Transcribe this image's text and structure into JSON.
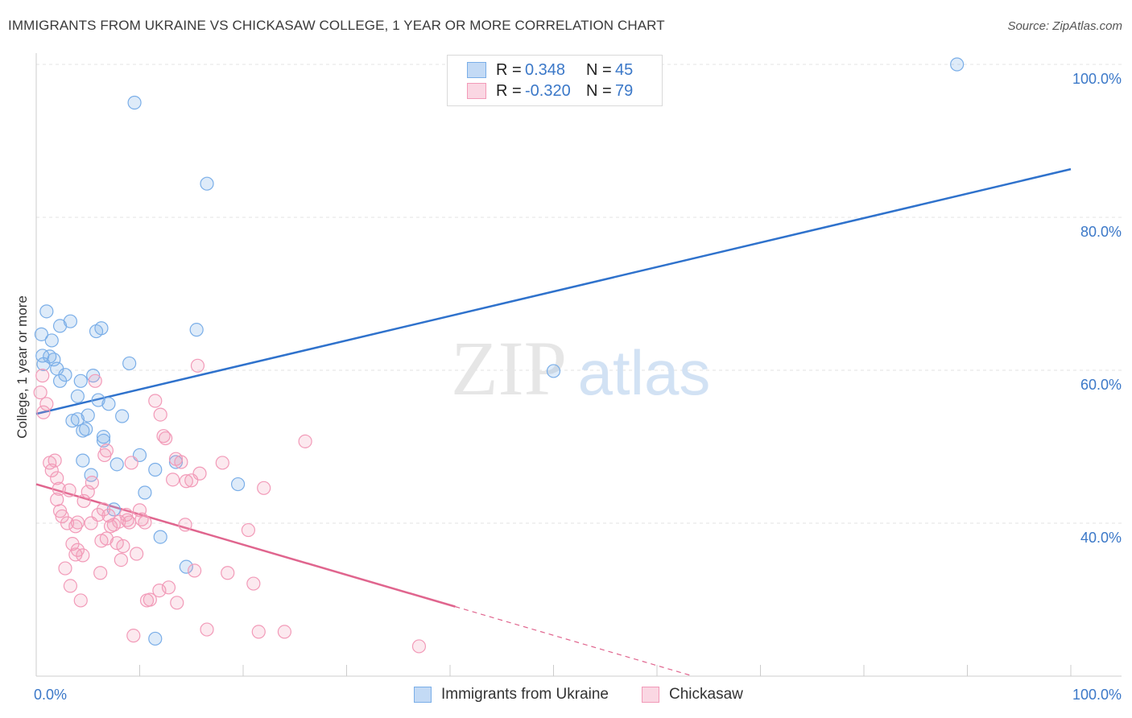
{
  "title": "IMMIGRANTS FROM UKRAINE VS CHICKASAW COLLEGE, 1 YEAR OR MORE CORRELATION CHART",
  "source": "Source: ZipAtlas.com",
  "watermark": {
    "zip": "ZIP",
    "atlas": "atlas"
  },
  "legend": {
    "rows": [
      {
        "r_label": "R =",
        "r_value": "0.348",
        "n_label": "N =",
        "n_value": "45",
        "color": "#7aaee8"
      },
      {
        "r_label": "R =",
        "r_value": "-0.320",
        "n_label": "N =",
        "n_value": "79",
        "color": "#f29ab8"
      }
    ]
  },
  "bottom_legend": {
    "series1": "Immigrants from Ukraine",
    "series2": "Chickasaw"
  },
  "chart_data": {
    "type": "scatter",
    "title": "IMMIGRANTS FROM UKRAINE VS CHICKASAW COLLEGE, 1 YEAR OR MORE CORRELATION CHART",
    "xlabel": "",
    "ylabel": "College, 1 year or more",
    "xlim": [
      0,
      100
    ],
    "ylim": [
      20,
      100
    ],
    "x_tick_labels": [
      "0.0%",
      "100.0%"
    ],
    "y_ticks": [
      40,
      60,
      80,
      100
    ],
    "y_tick_labels": [
      "40.0%",
      "60.0%",
      "80.0%",
      "100.0%"
    ],
    "grid": true,
    "series": [
      {
        "name": "Immigrants from Ukraine",
        "color": "#7aaee8",
        "line_color": "#2f72cc",
        "trend": {
          "x0": 0,
          "y0": 54.3,
          "x1": 100,
          "y1": 86.3,
          "dashed_from": null
        },
        "points": [
          [
            0.5,
            64.7
          ],
          [
            0.6,
            61.9
          ],
          [
            0.7,
            60.8
          ],
          [
            1.0,
            67.7
          ],
          [
            1.3,
            61.8
          ],
          [
            1.5,
            63.9
          ],
          [
            1.7,
            61.4
          ],
          [
            2.0,
            60.2
          ],
          [
            2.3,
            58.6
          ],
          [
            2.3,
            65.8
          ],
          [
            2.8,
            59.4
          ],
          [
            3.3,
            66.4
          ],
          [
            3.5,
            53.4
          ],
          [
            4.0,
            53.6
          ],
          [
            4.0,
            56.6
          ],
          [
            4.3,
            58.6
          ],
          [
            4.5,
            52.1
          ],
          [
            4.8,
            52.3
          ],
          [
            4.5,
            48.2
          ],
          [
            5.0,
            54.1
          ],
          [
            5.3,
            46.3
          ],
          [
            5.5,
            59.3
          ],
          [
            5.8,
            65.1
          ],
          [
            6.0,
            56.1
          ],
          [
            6.3,
            65.5
          ],
          [
            6.5,
            50.8
          ],
          [
            6.5,
            51.3
          ],
          [
            7.0,
            55.6
          ],
          [
            7.5,
            41.8
          ],
          [
            7.8,
            47.7
          ],
          [
            8.3,
            54.0
          ],
          [
            9.0,
            60.9
          ],
          [
            9.5,
            95.0
          ],
          [
            10.0,
            48.9
          ],
          [
            10.5,
            44.0
          ],
          [
            11.5,
            47.0
          ],
          [
            12.0,
            38.2
          ],
          [
            13.5,
            48.0
          ],
          [
            14.5,
            34.3
          ],
          [
            15.5,
            65.3
          ],
          [
            16.5,
            84.4
          ],
          [
            19.5,
            45.1
          ],
          [
            50.0,
            59.9
          ],
          [
            89.0,
            100.0
          ],
          [
            11.5,
            24.9
          ]
        ]
      },
      {
        "name": "Chickasaw",
        "color": "#f29ab8",
        "line_color": "#e0658e",
        "trend": {
          "x0": 0,
          "y0": 45.1,
          "x1": 63.5,
          "y1": 20.0,
          "dashed_from": 40.5
        },
        "points": [
          [
            0.4,
            57.1
          ],
          [
            0.6,
            59.3
          ],
          [
            0.7,
            54.5
          ],
          [
            1.0,
            55.6
          ],
          [
            1.3,
            47.9
          ],
          [
            1.5,
            46.9
          ],
          [
            1.8,
            48.2
          ],
          [
            2.0,
            45.9
          ],
          [
            2.0,
            43.1
          ],
          [
            2.3,
            41.6
          ],
          [
            2.5,
            40.9
          ],
          [
            2.8,
            34.1
          ],
          [
            3.0,
            40.0
          ],
          [
            3.2,
            44.3
          ],
          [
            3.3,
            31.8
          ],
          [
            3.5,
            37.3
          ],
          [
            3.8,
            39.6
          ],
          [
            4.0,
            40.1
          ],
          [
            4.0,
            36.5
          ],
          [
            4.3,
            29.9
          ],
          [
            4.5,
            35.8
          ],
          [
            4.6,
            42.9
          ],
          [
            5.0,
            44.1
          ],
          [
            5.3,
            40.0
          ],
          [
            5.4,
            45.3
          ],
          [
            5.7,
            58.6
          ],
          [
            6.0,
            41.1
          ],
          [
            6.2,
            33.5
          ],
          [
            6.3,
            37.7
          ],
          [
            6.5,
            41.8
          ],
          [
            6.6,
            48.9
          ],
          [
            6.8,
            49.5
          ],
          [
            7.0,
            41.0
          ],
          [
            7.2,
            39.6
          ],
          [
            7.5,
            39.8
          ],
          [
            7.8,
            37.4
          ],
          [
            8.0,
            40.2
          ],
          [
            8.2,
            35.2
          ],
          [
            8.4,
            37.0
          ],
          [
            8.7,
            41.1
          ],
          [
            9.0,
            40.1
          ],
          [
            9.2,
            47.9
          ],
          [
            9.4,
            25.3
          ],
          [
            9.7,
            36.0
          ],
          [
            10.2,
            40.5
          ],
          [
            10.5,
            40.1
          ],
          [
            10.7,
            29.9
          ],
          [
            11.0,
            30.0
          ],
          [
            11.5,
            56.0
          ],
          [
            11.9,
            31.2
          ],
          [
            12.0,
            54.2
          ],
          [
            12.3,
            51.4
          ],
          [
            12.5,
            51.1
          ],
          [
            12.8,
            31.6
          ],
          [
            13.2,
            45.7
          ],
          [
            13.5,
            48.4
          ],
          [
            13.6,
            29.6
          ],
          [
            14.0,
            48.0
          ],
          [
            14.5,
            45.5
          ],
          [
            15.0,
            45.6
          ],
          [
            15.3,
            33.8
          ],
          [
            15.8,
            46.5
          ],
          [
            15.6,
            60.6
          ],
          [
            16.5,
            26.1
          ],
          [
            18.0,
            47.9
          ],
          [
            18.5,
            33.5
          ],
          [
            20.5,
            39.1
          ],
          [
            21.0,
            32.1
          ],
          [
            21.5,
            25.8
          ],
          [
            22.0,
            44.6
          ],
          [
            24.0,
            25.8
          ],
          [
            26.0,
            50.7
          ],
          [
            37.0,
            23.9
          ],
          [
            2.2,
            44.5
          ],
          [
            3.8,
            35.9
          ],
          [
            6.8,
            38.0
          ],
          [
            8.8,
            40.4
          ],
          [
            10.0,
            41.7
          ],
          [
            14.4,
            39.8
          ]
        ]
      }
    ]
  }
}
